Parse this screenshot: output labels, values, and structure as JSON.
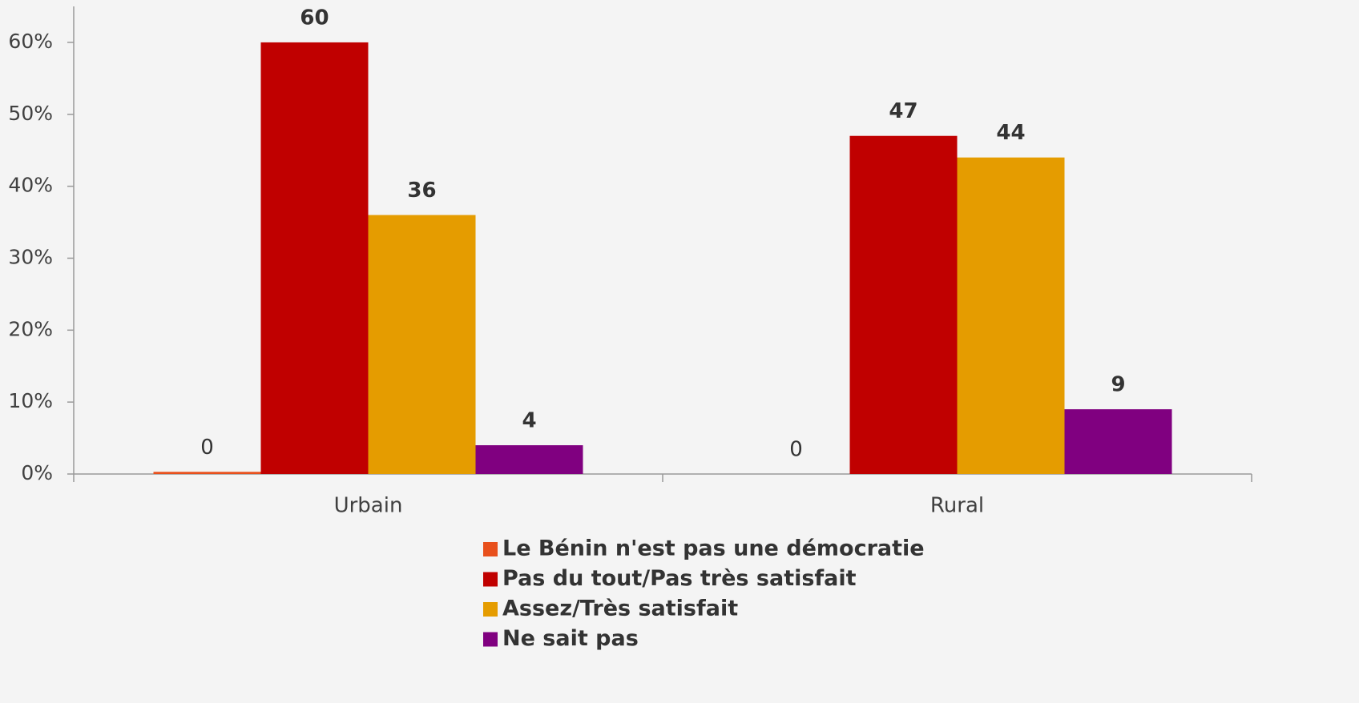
{
  "chart_data": {
    "type": "bar",
    "categories": [
      "Urbain",
      "Rural"
    ],
    "series": [
      {
        "name": "Le Bénin n'est pas une démocratie",
        "color": "#e8501c",
        "values": [
          0.3,
          0
        ],
        "value_labels": [
          "0",
          "0"
        ]
      },
      {
        "name": "Pas du tout/Pas très satisfait",
        "color": "#c00000",
        "values": [
          60,
          47
        ]
      },
      {
        "name": "Assez/Très satisfait",
        "color": "#e59c00",
        "values": [
          36,
          44
        ]
      },
      {
        "name": "Ne sait pas",
        "color": "#800080",
        "values": [
          4,
          9
        ]
      }
    ],
    "ylim": [
      0,
      65
    ],
    "yticks": [
      {
        "value": 0,
        "label": "0%"
      },
      {
        "value": 10,
        "label": "10%"
      },
      {
        "value": 20,
        "label": "20%"
      },
      {
        "value": 30,
        "label": "30%"
      },
      {
        "value": 40,
        "label": "40%"
      },
      {
        "value": 50,
        "label": "50%"
      },
      {
        "value": 60,
        "label": "60%"
      }
    ],
    "grid": false
  }
}
